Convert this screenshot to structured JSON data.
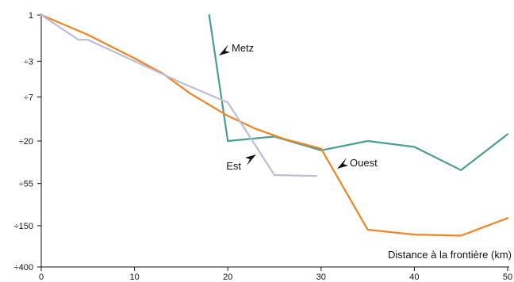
{
  "chart_data": {
    "type": "line",
    "xlabel": "Distance à la frontière (km)",
    "ylabel": "",
    "title": "",
    "xlim": [
      0,
      50
    ],
    "x_ticks": [
      0,
      10,
      20,
      30,
      40,
      50
    ],
    "y_scale": "log",
    "ylim": [
      1,
      400
    ],
    "y_ticks": [
      {
        "value": 1,
        "label": "1"
      },
      {
        "value": 3,
        "label": "÷3"
      },
      {
        "value": 7,
        "label": "÷7"
      },
      {
        "value": 20,
        "label": "÷20"
      },
      {
        "value": 55,
        "label": "÷55"
      },
      {
        "value": 150,
        "label": "÷150"
      },
      {
        "value": 400,
        "label": "÷400"
      }
    ],
    "grid": false,
    "series": [
      {
        "name": "Metz",
        "color": "#4a9e8e",
        "x": [
          18,
          20,
          25,
          30,
          35,
          40,
          45,
          50
        ],
        "y": [
          1,
          20,
          18,
          25,
          20,
          23,
          40,
          17
        ]
      },
      {
        "name": "Ouest",
        "color": "#f28322",
        "x": [
          0,
          5,
          10,
          13,
          16,
          20,
          23,
          26,
          30,
          35,
          40,
          45,
          50
        ],
        "y": [
          1,
          1.6,
          2.8,
          4,
          6.5,
          11,
          15,
          19,
          24,
          165,
          185,
          190,
          125
        ]
      },
      {
        "name": "Est",
        "color": "#bdbcd9",
        "x": [
          0,
          4,
          5,
          10,
          15,
          20,
          25,
          29.5
        ],
        "y": [
          1,
          1.8,
          1.8,
          3,
          5,
          8,
          45,
          46
        ]
      }
    ],
    "annotations": [
      {
        "text": "Metz",
        "series": "Metz"
      },
      {
        "text": "Ouest",
        "series": "Ouest"
      },
      {
        "text": "Est",
        "series": "Est"
      }
    ]
  }
}
